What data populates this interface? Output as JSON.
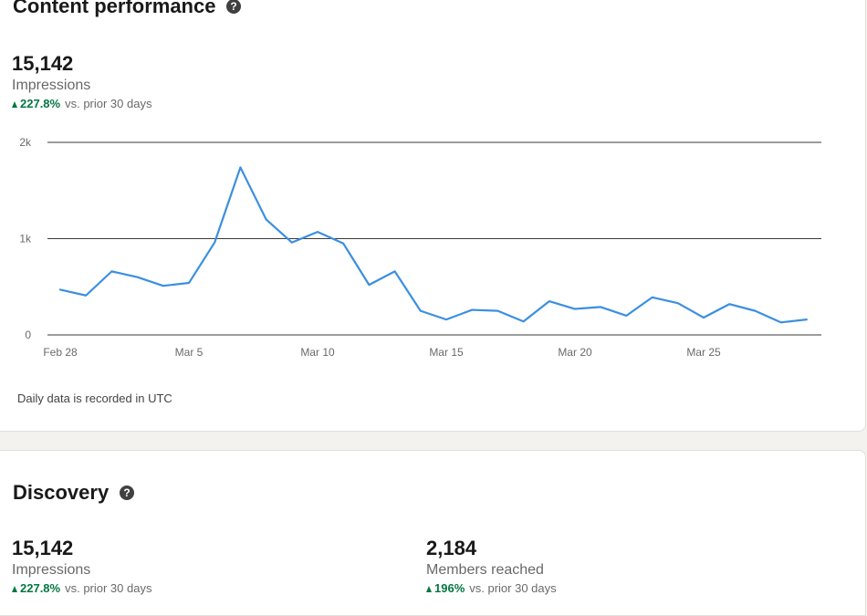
{
  "performance": {
    "title": "Content performance",
    "metric": {
      "value": "15,142",
      "label": "Impressions",
      "change": "227.8%",
      "change_suffix": "vs. prior 30 days"
    },
    "footnote": "Daily data is recorded in UTC"
  },
  "discovery": {
    "title": "Discovery",
    "impressions": {
      "value": "15,142",
      "label": "Impressions",
      "change": "227.8%",
      "change_suffix": "vs. prior 30 days"
    },
    "members": {
      "value": "2,184",
      "label": "Members reached",
      "change": "196%",
      "change_suffix": "vs. prior 30 days"
    }
  },
  "icons": {
    "help": "help-circle-icon",
    "trend_up": "triangle-up-icon"
  },
  "colors": {
    "line": "#3b8fe0",
    "positive": "#057642",
    "grid": "#3a3a3a"
  },
  "chart_data": {
    "type": "line",
    "x": [
      "Feb 28",
      "Mar 1",
      "Mar 2",
      "Mar 3",
      "Mar 4",
      "Mar 5",
      "Mar 6",
      "Mar 7",
      "Mar 8",
      "Mar 9",
      "Mar 10",
      "Mar 11",
      "Mar 12",
      "Mar 13",
      "Mar 14",
      "Mar 15",
      "Mar 16",
      "Mar 17",
      "Mar 18",
      "Mar 19",
      "Mar 20",
      "Mar 21",
      "Mar 22",
      "Mar 23",
      "Mar 24",
      "Mar 25",
      "Mar 26",
      "Mar 27",
      "Mar 28",
      "Mar 29"
    ],
    "series": [
      {
        "values": [
          470,
          410,
          660,
          600,
          510,
          540,
          960,
          1740,
          1200,
          960,
          1070,
          950,
          520,
          660,
          250,
          160,
          260,
          250,
          140,
          350,
          270,
          290,
          200,
          390,
          330,
          180,
          320,
          250,
          130,
          160
        ]
      }
    ],
    "x_tick_labels": [
      "Feb 28",
      "Mar 5",
      "Mar 10",
      "Mar 15",
      "Mar 20",
      "Mar 25"
    ],
    "y_tick_labels": [
      "0",
      "1k",
      "2k"
    ],
    "y_ticks": [
      0,
      1000,
      2000
    ],
    "ylim": [
      0,
      2000
    ],
    "grid": true,
    "legend": "none"
  }
}
